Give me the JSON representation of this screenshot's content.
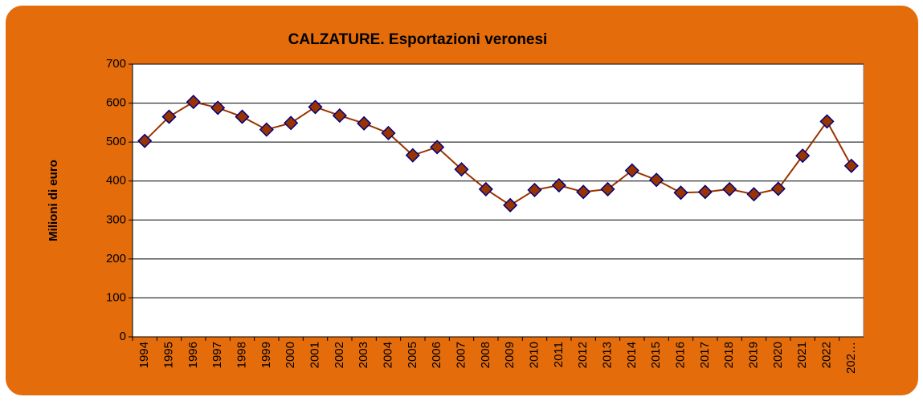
{
  "chart_data": {
    "type": "line",
    "title": "CALZATURE. Esportazioni veronesi",
    "y_label": "Milioni di euro",
    "categories": [
      "1994",
      "1995",
      "1996",
      "1997",
      "1998",
      "1999",
      "2000",
      "2001",
      "2002",
      "2003",
      "2004",
      "2005",
      "2006",
      "2007",
      "2008",
      "2009",
      "2010",
      "2011",
      "2012",
      "2013",
      "2014",
      "2015",
      "2016",
      "2017",
      "2018",
      "2019",
      "2020",
      "2021",
      "2022",
      "202…"
    ],
    "series": [
      {
        "name": "Esportazioni",
        "color": "#993300",
        "marker_edge": "#000080",
        "values": [
          503,
          565,
          603,
          588,
          565,
          532,
          549,
          590,
          568,
          548,
          523,
          466,
          487,
          430,
          379,
          338,
          377,
          389,
          372,
          379,
          427,
          403,
          370,
          372,
          379,
          366,
          380,
          465,
          553,
          439
        ]
      }
    ],
    "ylim": [
      0,
      700
    ],
    "yticks": [
      0,
      100,
      200,
      300,
      400,
      500,
      600,
      700
    ],
    "grid": true
  }
}
